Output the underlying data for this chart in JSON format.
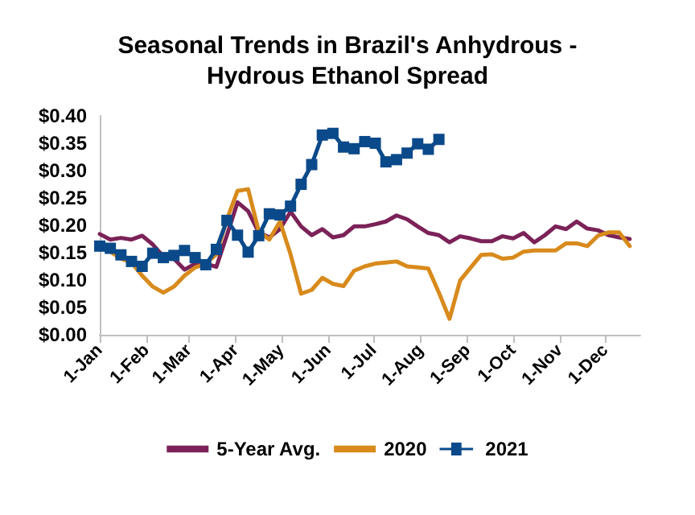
{
  "chart_data": {
    "type": "line",
    "title": "Seasonal Trends in Brazil's Anhydrous -\nHydrous Ethanol Spread",
    "x": [
      "--01-01",
      "--01-08",
      "--01-15",
      "--01-22",
      "--01-29",
      "--02-05",
      "--02-12",
      "--02-19",
      "--02-26",
      "--03-05",
      "--03-12",
      "--03-19",
      "--03-26",
      "--04-02",
      "--04-09",
      "--04-16",
      "--04-23",
      "--04-30",
      "--05-07",
      "--05-14",
      "--05-21",
      "--05-28",
      "--06-04",
      "--06-11",
      "--06-18",
      "--06-25",
      "--07-02",
      "--07-09",
      "--07-16",
      "--07-23",
      "--07-30",
      "--08-06",
      "--08-13",
      "--08-20",
      "--08-27",
      "--09-03",
      "--09-10",
      "--09-17",
      "--09-24",
      "--10-01",
      "--10-08",
      "--10-15",
      "--10-22",
      "--10-29",
      "--11-05",
      "--11-12",
      "--11-19",
      "--11-26",
      "--12-03",
      "--12-10",
      "--12-17"
    ],
    "series": [
      {
        "name": "5-Year Avg.",
        "color": "#7b2258",
        "marker": "none",
        "values": [
          0.184,
          0.174,
          0.177,
          0.174,
          0.181,
          0.165,
          0.143,
          0.139,
          0.119,
          0.13,
          0.13,
          0.124,
          0.182,
          0.242,
          0.226,
          0.187,
          0.178,
          0.193,
          0.225,
          0.198,
          0.182,
          0.193,
          0.178,
          0.182,
          0.198,
          0.198,
          0.202,
          0.207,
          0.218,
          0.211,
          0.198,
          0.186,
          0.182,
          0.169,
          0.18,
          0.176,
          0.171,
          0.171,
          0.18,
          0.176,
          0.186,
          0.169,
          0.182,
          0.198,
          0.193,
          0.207,
          0.194,
          0.191,
          0.182,
          0.178,
          0.175
        ]
      },
      {
        "name": "2020",
        "color": "#d88a1c",
        "marker": "none",
        "values": [
          0.162,
          0.152,
          0.139,
          0.132,
          0.108,
          0.088,
          0.077,
          0.088,
          0.108,
          0.123,
          0.13,
          0.147,
          0.211,
          0.263,
          0.266,
          0.189,
          0.174,
          0.207,
          0.147,
          0.075,
          0.082,
          0.104,
          0.093,
          0.089,
          0.117,
          0.125,
          0.13,
          0.132,
          0.134,
          0.125,
          0.123,
          0.121,
          0.077,
          0.029,
          0.099,
          0.123,
          0.146,
          0.147,
          0.139,
          0.141,
          0.152,
          0.154,
          0.154,
          0.154,
          0.167,
          0.167,
          0.162,
          0.181,
          0.187,
          0.187,
          0.162
        ]
      },
      {
        "name": "2021",
        "color": "#0b4a8a",
        "marker": "square",
        "values": [
          0.162,
          0.158,
          0.146,
          0.134,
          0.125,
          0.149,
          0.141,
          0.145,
          0.154,
          0.141,
          0.128,
          0.156,
          0.209,
          0.182,
          0.151,
          0.181,
          0.221,
          0.219,
          0.235,
          0.275,
          0.311,
          0.365,
          0.368,
          0.343,
          0.34,
          0.353,
          0.35,
          0.316,
          0.32,
          0.332,
          0.349,
          0.339,
          0.357,
          null,
          null,
          null,
          null,
          null,
          null,
          null,
          null,
          null,
          null,
          null,
          null,
          null,
          null,
          null,
          null,
          null,
          null
        ]
      }
    ],
    "xlim": [
      "--01-01",
      "--12-24"
    ],
    "xticks": [
      {
        "value": "--01-01",
        "label": "1-Jan"
      },
      {
        "value": "--02-01",
        "label": "1-Feb"
      },
      {
        "value": "--03-01",
        "label": "1-Mar"
      },
      {
        "value": "--04-01",
        "label": "1-Apr"
      },
      {
        "value": "--05-01",
        "label": "1-May"
      },
      {
        "value": "--06-01",
        "label": "1-Jun"
      },
      {
        "value": "--07-01",
        "label": "1-Jul"
      },
      {
        "value": "--08-01",
        "label": "1-Aug"
      },
      {
        "value": "--09-01",
        "label": "1-Sep"
      },
      {
        "value": "--10-01",
        "label": "1-Oct"
      },
      {
        "value": "--11-01",
        "label": "1-Nov"
      },
      {
        "value": "--12-01",
        "label": "1-Dec"
      }
    ],
    "ylim": [
      0,
      0.4
    ],
    "yticks": [
      {
        "value": 0,
        "label": "$0.00"
      },
      {
        "value": 0.05,
        "label": "$0.05"
      },
      {
        "value": 0.1,
        "label": "$0.10"
      },
      {
        "value": 0.15,
        "label": "$0.15"
      },
      {
        "value": 0.2,
        "label": "$0.20"
      },
      {
        "value": 0.25,
        "label": "$0.25"
      },
      {
        "value": 0.3,
        "label": "$0.30"
      },
      {
        "value": 0.35,
        "label": "$0.35"
      },
      {
        "value": 0.4,
        "label": "$0.40"
      }
    ],
    "grid": false,
    "legend": "bottom",
    "line_style": "solid"
  }
}
